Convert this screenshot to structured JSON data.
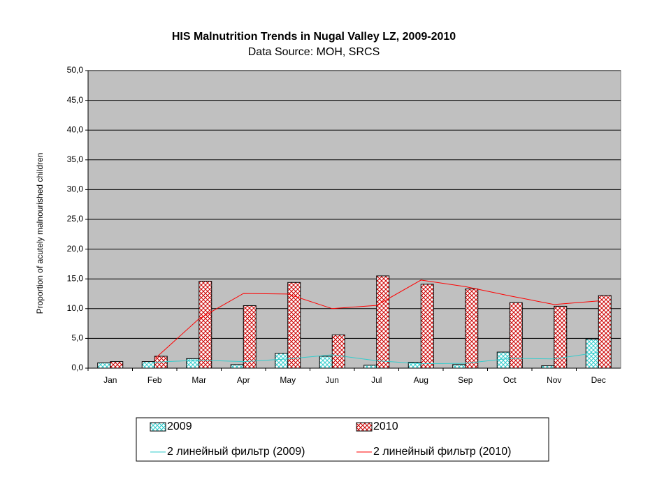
{
  "chart_data": {
    "type": "bar",
    "title": "HIS Malnutrition Trends in Nugal Valley LZ, 2009-2010",
    "subtitle": "Data Source: MOH, SRCS",
    "y_label": "Proportion of acutely  malnourished children",
    "categories": [
      "Jan",
      "Feb",
      "Mar",
      "Apr",
      "May",
      "Jun",
      "Jul",
      "Aug",
      "Sep",
      "Oct",
      "Nov",
      "Dec"
    ],
    "series": [
      {
        "name": "2009",
        "type": "bar",
        "color": "#33cccc",
        "values": [
          0.9,
          1.1,
          1.6,
          0.6,
          2.5,
          2.0,
          0.5,
          1.0,
          0.6,
          2.7,
          0.4,
          4.9
        ]
      },
      {
        "name": "2010",
        "type": "bar",
        "color": "#cc0000",
        "values": [
          1.1,
          2.0,
          14.6,
          10.5,
          14.4,
          5.6,
          15.5,
          14.1,
          13.3,
          11.0,
          10.4,
          12.2
        ]
      },
      {
        "name": "2 линейный фильтр (2009)",
        "type": "line",
        "color": "#33cccc",
        "values": [
          null,
          1.0,
          1.35,
          1.1,
          1.55,
          2.25,
          1.25,
          0.75,
          0.8,
          1.65,
          1.55,
          2.65
        ]
      },
      {
        "name": "2 линейный фильтр (2010)",
        "type": "line",
        "color": "#ff0000",
        "values": [
          null,
          1.55,
          8.3,
          12.55,
          12.45,
          10.0,
          10.55,
          14.8,
          13.7,
          12.15,
          10.7,
          11.3
        ]
      }
    ],
    "ylim": [
      0,
      50
    ],
    "yticks": [
      {
        "value": 0,
        "label": "0,0"
      },
      {
        "value": 5,
        "label": "5,0"
      },
      {
        "value": 10,
        "label": "10,0"
      },
      {
        "value": 15,
        "label": "15,0"
      },
      {
        "value": 20,
        "label": "20,0"
      },
      {
        "value": 25,
        "label": "25,0"
      },
      {
        "value": 30,
        "label": "30,0"
      },
      {
        "value": 35,
        "label": "35,0"
      },
      {
        "value": 40,
        "label": "40,0"
      },
      {
        "value": 45,
        "label": "45,0"
      },
      {
        "value": 50,
        "label": "50,0"
      }
    ],
    "grid": true,
    "legend": "bottom"
  }
}
